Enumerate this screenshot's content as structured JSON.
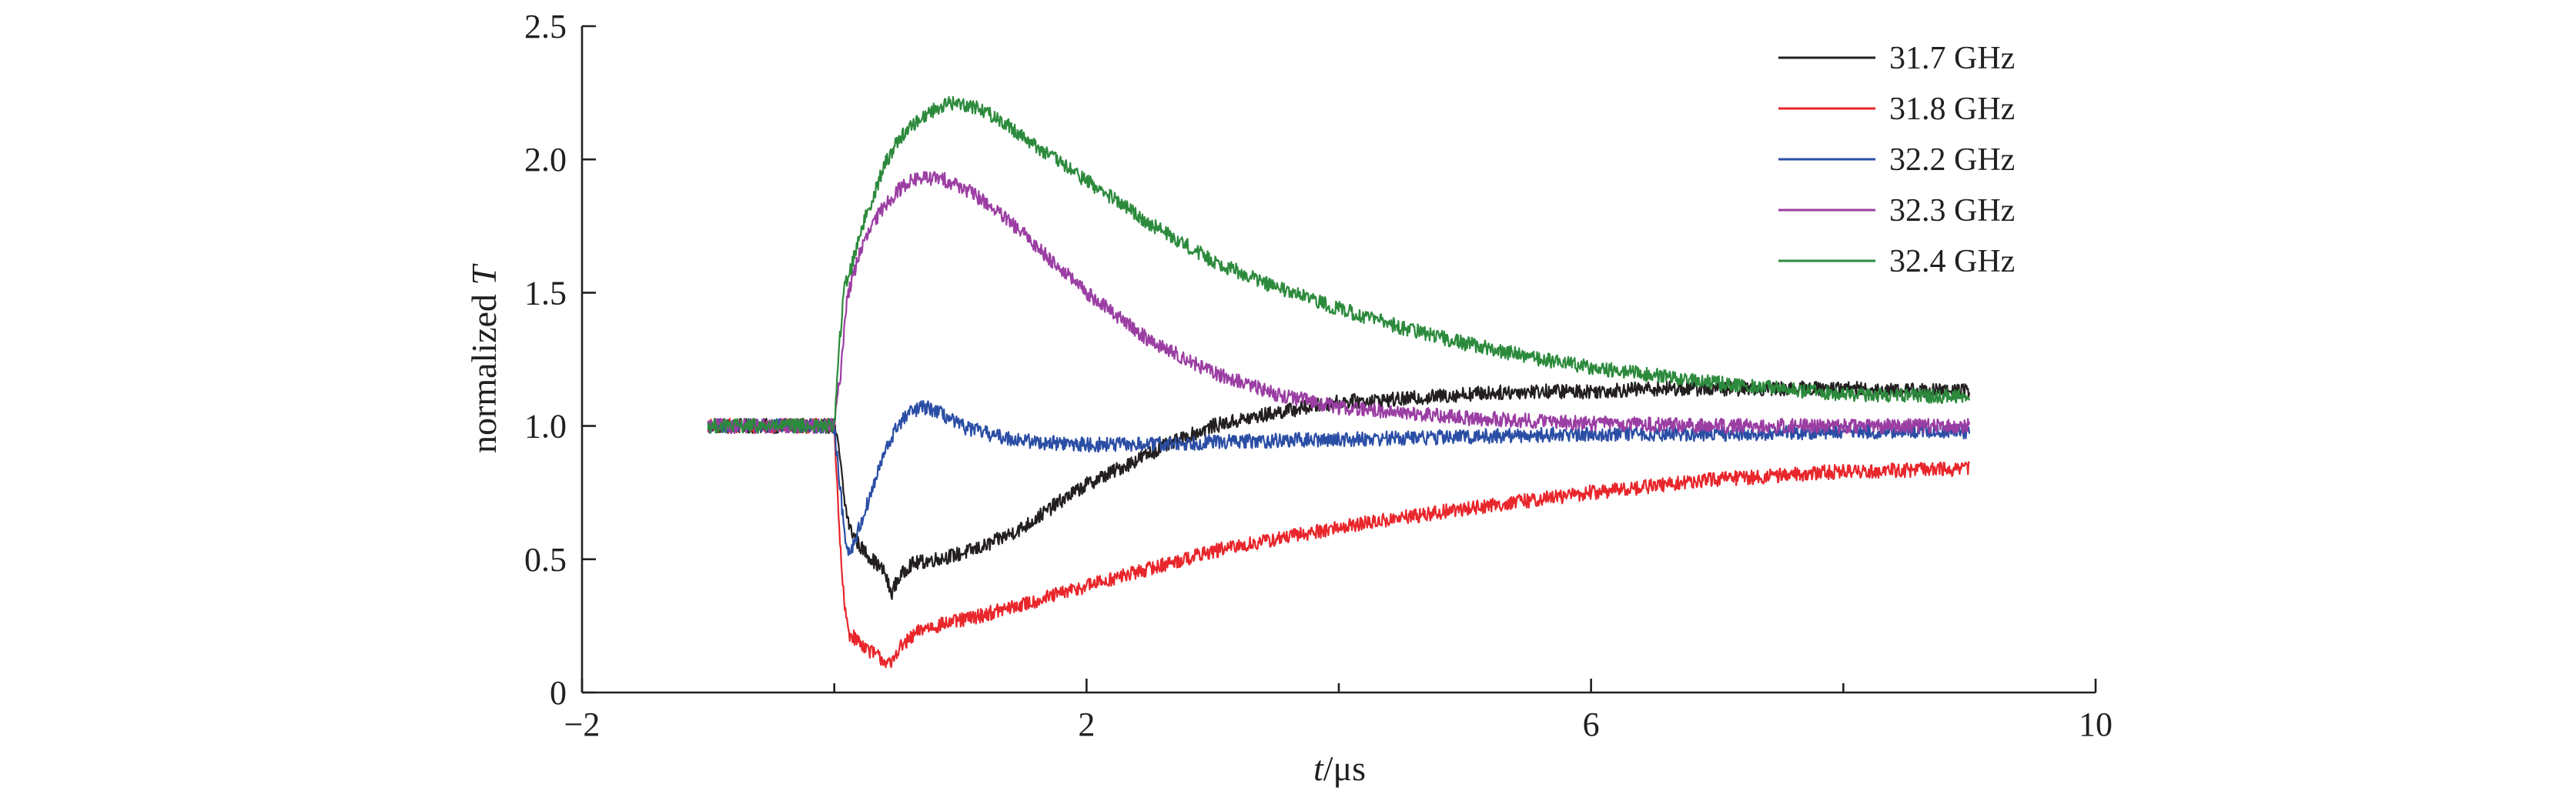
{
  "chart_data": {
    "type": "line",
    "title": "",
    "xlabel": {
      "italic": "t",
      "rest": "/μs"
    },
    "ylabel": {
      "text": "normalized ",
      "italic": "T"
    },
    "xlim": [
      -2,
      10
    ],
    "ylim": [
      0,
      2.5
    ],
    "x_ticks": [
      {
        "value": -2,
        "label": "−2"
      },
      {
        "value": 2,
        "label": "2"
      },
      {
        "value": 6,
        "label": "6"
      },
      {
        "value": 10,
        "label": "10"
      }
    ],
    "x_minor_ticks": [
      0,
      4,
      8
    ],
    "y_ticks": [
      {
        "value": 0,
        "label": "0"
      },
      {
        "value": 0.5,
        "label": "0.5"
      },
      {
        "value": 1.0,
        "label": "1.0"
      },
      {
        "value": 1.5,
        "label": "1.5"
      },
      {
        "value": 2.0,
        "label": "2.0"
      },
      {
        "value": 2.5,
        "label": "2.5"
      }
    ],
    "grid": false,
    "legend_position": "top-right",
    "series": [
      {
        "name": "31.7 GHz",
        "color": "#231f20",
        "x": [
          -1,
          -0.5,
          0,
          0.04,
          0.08,
          0.12,
          0.2,
          0.3,
          0.4,
          0.45,
          0.5,
          0.6,
          0.8,
          1.0,
          1.2,
          1.5,
          1.8,
          2.0,
          2.3,
          2.6,
          3.0,
          3.5,
          4.0,
          4.5,
          5.0,
          5.5,
          6.0,
          6.5,
          7.0,
          8.0,
          9.0
        ],
        "values": [
          1.0,
          1.0,
          1.0,
          0.9,
          0.72,
          0.62,
          0.55,
          0.5,
          0.45,
          0.37,
          0.42,
          0.48,
          0.5,
          0.52,
          0.55,
          0.62,
          0.72,
          0.78,
          0.85,
          0.92,
          1.0,
          1.05,
          1.09,
          1.1,
          1.12,
          1.13,
          1.13,
          1.14,
          1.14,
          1.14,
          1.13
        ]
      },
      {
        "name": "31.8 GHz",
        "color": "#e8262b",
        "x": [
          -1,
          -0.5,
          0,
          0.04,
          0.08,
          0.12,
          0.2,
          0.3,
          0.4,
          0.45,
          0.5,
          0.7,
          1.0,
          1.5,
          2.0,
          3.0,
          4.0,
          5.0,
          6.0,
          7.0,
          8.0,
          9.0
        ],
        "values": [
          1.0,
          1.0,
          1.0,
          0.6,
          0.32,
          0.22,
          0.19,
          0.15,
          0.12,
          0.1,
          0.16,
          0.24,
          0.27,
          0.33,
          0.4,
          0.53,
          0.62,
          0.69,
          0.75,
          0.8,
          0.83,
          0.84
        ]
      },
      {
        "name": "32.2 GHz",
        "color": "#2b4ea5",
        "x": [
          -1,
          -0.5,
          0,
          0.04,
          0.08,
          0.12,
          0.2,
          0.3,
          0.4,
          0.5,
          0.6,
          0.7,
          0.8,
          1.0,
          1.3,
          1.6,
          2.0,
          2.5,
          3.0,
          4.0,
          5.0,
          6.0,
          7.0,
          8.0,
          9.0
        ],
        "values": [
          1.0,
          1.0,
          1.0,
          0.8,
          0.6,
          0.52,
          0.62,
          0.76,
          0.9,
          1.0,
          1.05,
          1.07,
          1.06,
          1.0,
          0.96,
          0.94,
          0.93,
          0.93,
          0.94,
          0.95,
          0.96,
          0.97,
          0.97,
          0.98,
          0.98
        ]
      },
      {
        "name": "32.3 GHz",
        "color": "#9b3ea3",
        "x": [
          -1,
          -0.5,
          0,
          0.05,
          0.1,
          0.2,
          0.3,
          0.4,
          0.5,
          0.6,
          0.7,
          0.8,
          0.9,
          1.0,
          1.2,
          1.5,
          2.0,
          2.5,
          3.0,
          3.5,
          4.0,
          5.0,
          6.0,
          7.0,
          8.0,
          9.0
        ],
        "values": [
          1.0,
          1.0,
          1.0,
          1.2,
          1.48,
          1.65,
          1.75,
          1.83,
          1.88,
          1.92,
          1.93,
          1.93,
          1.92,
          1.9,
          1.84,
          1.72,
          1.5,
          1.32,
          1.2,
          1.12,
          1.07,
          1.03,
          1.01,
          1.0,
          1.0,
          1.0
        ]
      },
      {
        "name": "32.4 GHz",
        "color": "#2c8a3c",
        "x": [
          -1,
          -0.5,
          0,
          0.04,
          0.08,
          0.15,
          0.2,
          0.3,
          0.4,
          0.5,
          0.6,
          0.7,
          0.8,
          0.9,
          1.0,
          1.1,
          1.2,
          1.4,
          1.6,
          2.0,
          2.5,
          3.0,
          3.5,
          4.0,
          4.5,
          5.0,
          5.5,
          6.0,
          7.0,
          8.0,
          9.0
        ],
        "values": [
          1.0,
          1.0,
          1.0,
          1.3,
          1.52,
          1.62,
          1.72,
          1.85,
          1.98,
          2.07,
          2.12,
          2.16,
          2.19,
          2.21,
          2.21,
          2.2,
          2.18,
          2.12,
          2.05,
          1.92,
          1.76,
          1.62,
          1.52,
          1.44,
          1.37,
          1.31,
          1.26,
          1.22,
          1.16,
          1.12,
          1.11
        ]
      }
    ]
  }
}
